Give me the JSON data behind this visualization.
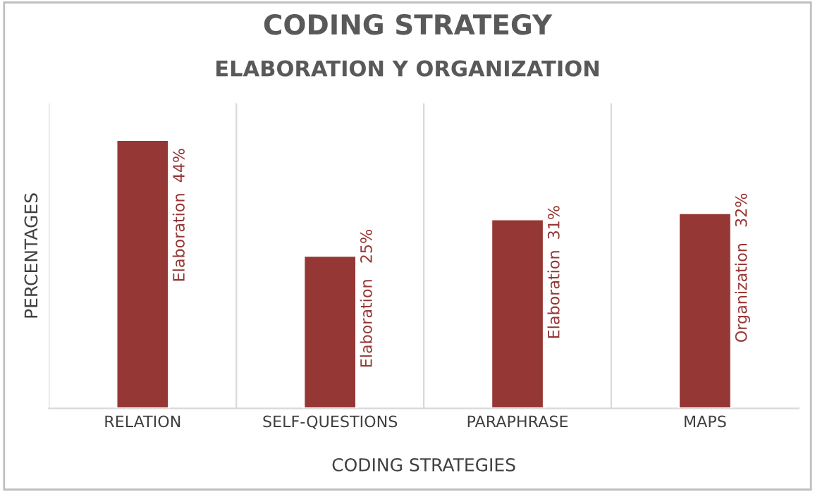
{
  "chart_data": {
    "type": "bar",
    "title": "CODING STRATEGY",
    "subtitle": "ELABORATION Y ORGANIZATION",
    "categories": [
      "RELATION",
      "SELF-QUESTIONS",
      "PARAPHRASE",
      "MAPS"
    ],
    "values": [
      44,
      25,
      31,
      32
    ],
    "color": "#953735",
    "value_labels": [
      "Elaboration  44%",
      "Elaboration   25%",
      "Elaboration  31%",
      "Organization   32%"
    ],
    "xlabel": "CODING STRATEGIES",
    "ylabel": "PERCENTAGES",
    "ylim": [
      0,
      50
    ],
    "tick_labels": "x",
    "grid": "x"
  }
}
